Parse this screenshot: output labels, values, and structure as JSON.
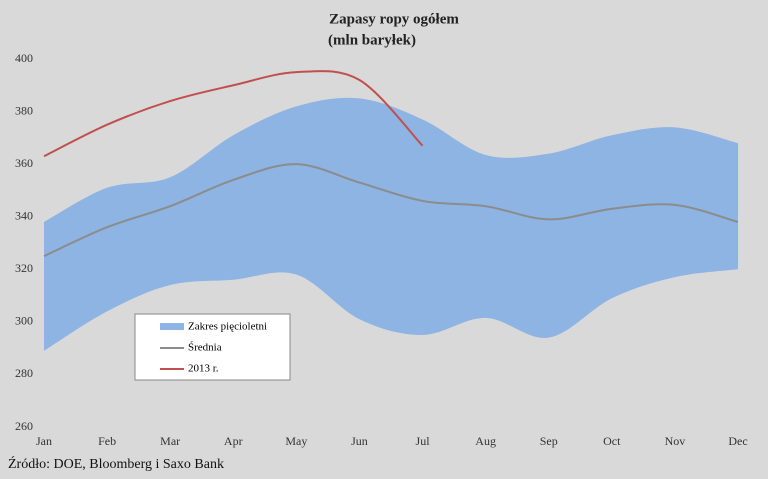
{
  "chart_data": {
    "type": "range-line",
    "title": "Zapasy ropy ogółem",
    "subtitle": "(mln baryłek)",
    "source": "Źródło: DOE, Bloomberg i Saxo Bank",
    "categories": [
      "Jan",
      "Feb",
      "Mar",
      "Apr",
      "May",
      "Jun",
      "Jul",
      "Aug",
      "Sep",
      "Oct",
      "Nov",
      "Dec"
    ],
    "range": {
      "name": "Zakres pięcioletni",
      "color": "#8db4e2",
      "low": [
        289,
        304,
        314,
        316,
        318,
        301,
        295,
        301.5,
        294,
        309,
        317,
        320
      ],
      "high": [
        338,
        351,
        355,
        371,
        382,
        385,
        377,
        363.5,
        364,
        371,
        374,
        368
      ]
    },
    "series": [
      {
        "name": "Średnia",
        "color": "#8c8c8c",
        "values": [
          325,
          336,
          344,
          354,
          360,
          353,
          346,
          344,
          339,
          343,
          344.5,
          338
        ]
      },
      {
        "name": "2013 r.",
        "color": "#c0504d",
        "values": [
          363,
          375,
          384,
          390,
          395,
          392,
          367,
          null,
          null,
          null,
          null,
          null
        ]
      }
    ],
    "ylim": [
      260,
      400
    ],
    "yticks": [
      260,
      280,
      300,
      320,
      340,
      360,
      380,
      400
    ],
    "grid": false
  }
}
